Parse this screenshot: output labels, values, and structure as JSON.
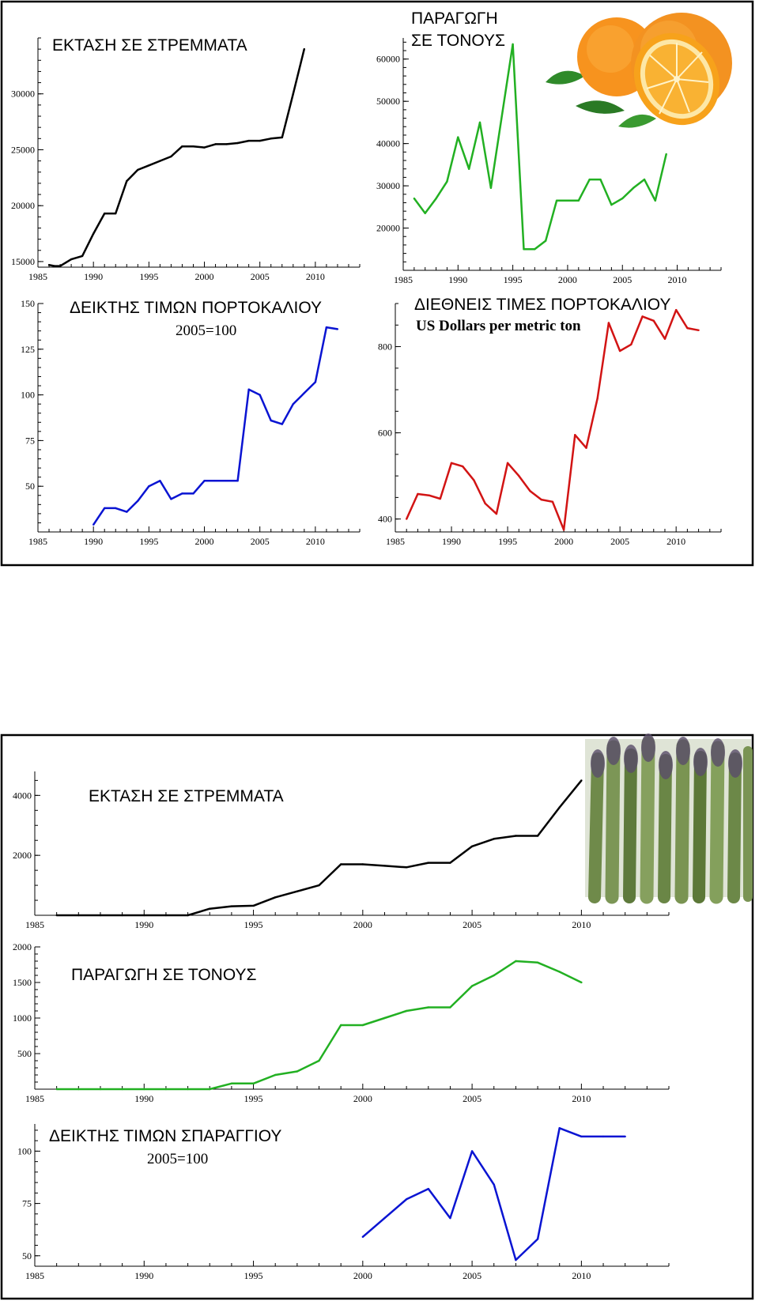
{
  "colors": {
    "acreage": "#000000",
    "production": "#22b022",
    "price_index": "#0a14d2",
    "intl_price": "#d21414",
    "frame": "#000000"
  },
  "orange_panel": {
    "image_icon": "orange-fruit-icon",
    "acreage": {
      "title": "ΕΚΤΑΣΗ ΣΕ ΣΤΡΕΜΜΑΤΑ",
      "chart_data": {
        "type": "line",
        "title": "ΕΚΤΑΣΗ ΣΕ ΣΤΡΕΜΜΑΤΑ",
        "xlim": [
          1985,
          2014
        ],
        "ylim": [
          14500,
          35000
        ],
        "x_ticks": [
          1985,
          1990,
          1995,
          2000,
          2005,
          2010
        ],
        "y_ticks": [
          15000,
          20000,
          25000,
          30000
        ],
        "x_tick_labels": [
          "1985",
          "1990",
          "1995",
          "2000",
          "2005",
          "2010"
        ],
        "y_tick_labels": [
          "15000",
          "20000",
          "25000",
          "30000"
        ],
        "x": [
          1986,
          1986.5,
          1987,
          1987.5,
          1988,
          1989,
          1990,
          1991,
          1992,
          1993,
          1994,
          1995,
          1996,
          1997,
          1998,
          1999,
          2000,
          2001,
          2002,
          2003,
          2004,
          2005,
          2006,
          2007,
          2008,
          2009
        ],
        "values": [
          14700,
          14600,
          14600,
          14900,
          15200,
          15500,
          17500,
          19300,
          19300,
          22200,
          23200,
          23600,
          24000,
          24400,
          25300,
          25300,
          25200,
          25500,
          25500,
          25600,
          25800,
          25800,
          26000,
          26100,
          30000,
          34000
        ]
      }
    },
    "production": {
      "title_line1": "ΠΑΡΑΓΩΓΗ",
      "title_line2": "ΣΕ ΤΟΝΟΥΣ",
      "chart_data": {
        "type": "line",
        "title": "ΠΑΡΑΓΩΓΗ ΣΕ ΤΟΝΟΥΣ",
        "xlim": [
          1985,
          2014
        ],
        "ylim": [
          10000,
          65000
        ],
        "x_ticks": [
          1985,
          1990,
          1995,
          2000,
          2005,
          2010
        ],
        "y_ticks": [
          20000,
          30000,
          40000,
          50000,
          60000
        ],
        "x_tick_labels": [
          "1985",
          "1990",
          "1995",
          "2000",
          "2005",
          "2010"
        ],
        "y_tick_labels": [
          "20000",
          "30000",
          "40000",
          "50000",
          "60000"
        ],
        "x": [
          1986,
          1987,
          1988,
          1989,
          1990,
          1991,
          1992,
          1993,
          1995,
          1996,
          1997,
          1998,
          1999,
          2000,
          2001,
          2002,
          2003,
          2004,
          2005,
          2006,
          2007,
          2008,
          2009
        ],
        "values": [
          27000,
          23500,
          27000,
          31000,
          41500,
          34000,
          45000,
          29500,
          63500,
          15000,
          15000,
          17000,
          26500,
          26500,
          26500,
          31500,
          31500,
          25500,
          27000,
          29500,
          31500,
          26500,
          37500
        ]
      }
    },
    "price_index": {
      "title": "ΔΕΙΚΤΗΣ ΤΙΜΩΝ ΠΟΡΤΟΚΑΛΙΟΥ",
      "subtitle": "2005=100",
      "chart_data": {
        "type": "line",
        "title": "ΔΕΙΚΤΗΣ ΤΙΜΩΝ ΠΟΡΤΟΚΑΛΙΟΥ",
        "subtitle": "2005=100",
        "xlim": [
          1985,
          2014
        ],
        "ylim": [
          25,
          150
        ],
        "x_ticks": [
          1985,
          1990,
          1995,
          2000,
          2005,
          2010
        ],
        "y_ticks": [
          50,
          75,
          100,
          125,
          150
        ],
        "x_tick_labels": [
          "1985",
          "1990",
          "1995",
          "2000",
          "2005",
          "2010"
        ],
        "y_tick_labels": [
          "50",
          "75",
          "100",
          "125",
          "150"
        ],
        "x": [
          1990,
          1991,
          1992,
          1993,
          1994,
          1995,
          1996,
          1997,
          1998,
          1999,
          2000,
          2001,
          2002,
          2003,
          2004,
          2005,
          2006,
          2007,
          2008,
          2009,
          2010,
          2011,
          2012
        ],
        "values": [
          29,
          38,
          38,
          36,
          42,
          50,
          53,
          43,
          46,
          46,
          53,
          53,
          53,
          53,
          103,
          100,
          86,
          84,
          95,
          101,
          107,
          137,
          136
        ]
      }
    },
    "intl_price": {
      "title": "ΔΙΕΘΝΕΙΣ ΤΙΜΕΣ  ΠΟΡΤΟΚΑΛΙΟΥ",
      "subtitle": "US Dollars per metric ton",
      "chart_data": {
        "type": "line",
        "title": "ΔΙΕΘΝΕΙΣ ΤΙΜΕΣ ΠΟΡΤΟΚΑΛΙΟΥ",
        "subtitle": "US Dollars per metric ton",
        "xlim": [
          1985,
          2014
        ],
        "ylim": [
          370,
          900
        ],
        "x_ticks": [
          1985,
          1990,
          1995,
          2000,
          2005,
          2010
        ],
        "y_ticks": [
          400,
          600,
          800
        ],
        "x_tick_labels": [
          "1985",
          "1990",
          "1995",
          "2000",
          "2005",
          "2010"
        ],
        "y_tick_labels": [
          "400",
          "600",
          "800"
        ],
        "x": [
          1986,
          1987,
          1988,
          1989,
          1990,
          1991,
          1992,
          1993,
          1994,
          1995,
          1996,
          1997,
          1998,
          1999,
          2000,
          2001,
          2002,
          2003,
          2004,
          2005,
          2006,
          2007,
          2008,
          2009,
          2010,
          2011,
          2012
        ],
        "values": [
          400,
          458,
          455,
          447,
          530,
          522,
          490,
          436,
          412,
          530,
          500,
          465,
          445,
          440,
          375,
          595,
          565,
          680,
          855,
          790,
          805,
          870,
          860,
          818,
          885,
          843,
          838
        ]
      }
    }
  },
  "asparagus_panel": {
    "image_icon": "asparagus-bunch-icon",
    "acreage": {
      "title": "ΕΚΤΑΣΗ ΣΕ ΣΤΡΕΜΜΑΤΑ",
      "chart_data": {
        "type": "line",
        "title": "ΕΚΤΑΣΗ ΣΕ ΣΤΡΕΜΜΑΤΑ",
        "xlim": [
          1985,
          2014
        ],
        "ylim": [
          0,
          4800
        ],
        "x_ticks": [
          1985,
          1990,
          1995,
          2000,
          2005,
          2010
        ],
        "y_ticks": [
          2000,
          4000
        ],
        "x_tick_labels": [
          "1985",
          "1990",
          "1995",
          "2000",
          "2005",
          "2010"
        ],
        "y_tick_labels": [
          "2000",
          "4000"
        ],
        "x": [
          1986,
          1987,
          1988,
          1989,
          1990,
          1991,
          1992,
          1993,
          1994,
          1995,
          1996,
          1997,
          1998,
          1999,
          2000,
          2001,
          2002,
          2003,
          2004,
          2005,
          2006,
          2007,
          2008,
          2009,
          2010
        ],
        "values": [
          0,
          0,
          0,
          0,
          0,
          0,
          0,
          220,
          300,
          320,
          600,
          800,
          1000,
          1700,
          1700,
          1650,
          1600,
          1750,
          1750,
          2300,
          2550,
          2650,
          2650,
          3600,
          4500
        ]
      }
    },
    "production": {
      "title": "ΠΑΡΑΓΩΓΗ ΣΕ ΤΟΝΟΥΣ",
      "chart_data": {
        "type": "line",
        "title": "ΠΑΡΑΓΩΓΗ ΣΕ ΤΟΝΟΥΣ",
        "xlim": [
          1985,
          2014
        ],
        "ylim": [
          0,
          2000
        ],
        "x_ticks": [
          1985,
          1990,
          1995,
          2000,
          2005,
          2010
        ],
        "y_ticks": [
          500,
          1000,
          1500,
          2000
        ],
        "x_tick_labels": [
          "1985",
          "1990",
          "1995",
          "2000",
          "2005",
          "2010"
        ],
        "y_tick_labels": [
          "500",
          "1000",
          "1500",
          "2000"
        ],
        "x": [
          1986,
          1987,
          1988,
          1989,
          1990,
          1991,
          1992,
          1993,
          1994,
          1995,
          1996,
          1997,
          1998,
          1999,
          2000,
          2001,
          2002,
          2003,
          2004,
          2005,
          2006,
          2007,
          2008,
          2009,
          2010
        ],
        "values": [
          0,
          0,
          0,
          0,
          0,
          0,
          0,
          0,
          80,
          80,
          200,
          250,
          400,
          900,
          900,
          1000,
          1100,
          1150,
          1150,
          1450,
          1600,
          1800,
          1780,
          1650,
          1500
        ]
      }
    },
    "price_index": {
      "title": "ΔΕΙΚΤΗΣ ΤΙΜΩΝ ΣΠΑΡΑΓΓΙΟΥ",
      "subtitle": "2005=100",
      "chart_data": {
        "type": "line",
        "title": "ΔΕΙΚΤΗΣ ΤΙΜΩΝ ΣΠΑΡΑΓΓΙΟΥ",
        "subtitle": "2005=100",
        "xlim": [
          1985,
          2014
        ],
        "ylim": [
          45,
          113
        ],
        "x_ticks": [
          1985,
          1990,
          1995,
          2000,
          2005,
          2010
        ],
        "y_ticks": [
          50,
          75,
          100
        ],
        "x_tick_labels": [
          "1985",
          "1990",
          "1995",
          "2000",
          "2005",
          "2010"
        ],
        "y_tick_labels": [
          "50",
          "75",
          "100"
        ],
        "x": [
          2000,
          2001,
          2002,
          2003,
          2004,
          2005,
          2006,
          2007,
          2008,
          2009,
          2010,
          2011,
          2012
        ],
        "values": [
          59,
          68,
          77,
          82,
          68,
          100,
          84,
          48,
          58,
          111,
          107,
          107,
          107
        ]
      }
    }
  }
}
